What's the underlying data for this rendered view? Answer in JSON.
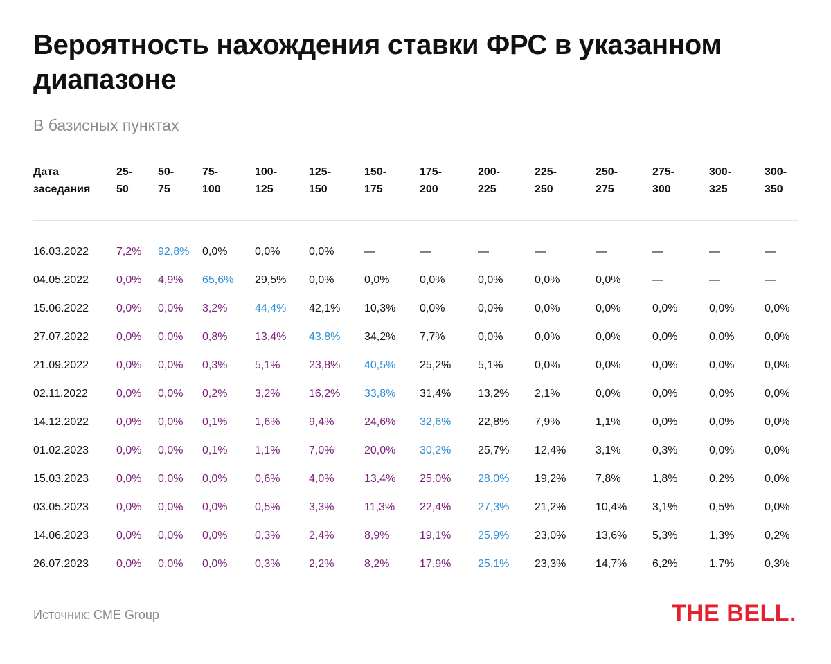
{
  "title": "Вероятность нахождения ставки ФРС в указанном диапазоне",
  "subtitle": "В базисных пунктах",
  "source": "Источник: CME Group",
  "logo": "THE BELL.",
  "colors": {
    "purple": "#7a1f7a",
    "blue": "#2e8fd6",
    "black": "#111111",
    "logo_red": "#e5202e"
  },
  "chart_data": {
    "type": "table",
    "columns": [
      "Дата\nзаседания",
      "25-\n50",
      "50-\n75",
      "75-\n100",
      "100-\n125",
      "125-\n150",
      "150-\n175",
      "175-\n200",
      "200-\n225",
      "225-\n250",
      "250-\n275",
      "275-\n300",
      "300-\n325",
      "300-\n350"
    ],
    "rows": [
      {
        "date": "16.03.2022",
        "values": [
          "7,2%",
          "92,8%",
          "0,0%",
          "0,0%",
          "0,0%",
          "—",
          "—",
          "—",
          "—",
          "—",
          "—",
          "—",
          "—"
        ],
        "highlight": 1,
        "pre": 1
      },
      {
        "date": "04.05.2022",
        "values": [
          "0,0%",
          "4,9%",
          "65,6%",
          "29,5%",
          "0,0%",
          "0,0%",
          "0,0%",
          "0,0%",
          "0,0%",
          "0,0%",
          "—",
          "—",
          "—"
        ],
        "highlight": 2,
        "pre": 2
      },
      {
        "date": "15.06.2022",
        "values": [
          "0,0%",
          "0,0%",
          "3,2%",
          "44,4%",
          "42,1%",
          "10,3%",
          "0,0%",
          "0,0%",
          "0,0%",
          "0,0%",
          "0,0%",
          "0,0%",
          "0,0%"
        ],
        "highlight": 3,
        "pre": 3
      },
      {
        "date": "27.07.2022",
        "values": [
          "0,0%",
          "0,0%",
          "0,8%",
          "13,4%",
          "43,8%",
          "34,2%",
          "7,7%",
          "0,0%",
          "0,0%",
          "0,0%",
          "0,0%",
          "0,0%",
          "0,0%"
        ],
        "highlight": 4,
        "pre": 4
      },
      {
        "date": "21.09.2022",
        "values": [
          "0,0%",
          "0,0%",
          "0,3%",
          "5,1%",
          "23,8%",
          "40,5%",
          "25,2%",
          "5,1%",
          "0,0%",
          "0,0%",
          "0,0%",
          "0,0%",
          "0,0%"
        ],
        "highlight": 5,
        "pre": 5
      },
      {
        "date": "02.11.2022",
        "values": [
          "0,0%",
          "0,0%",
          "0,2%",
          "3,2%",
          "16,2%",
          "33,8%",
          "31,4%",
          "13,2%",
          "2,1%",
          "0,0%",
          "0,0%",
          "0,0%",
          "0,0%"
        ],
        "highlight": 5,
        "pre": 5
      },
      {
        "date": "14.12.2022",
        "values": [
          "0,0%",
          "0,0%",
          "0,1%",
          "1,6%",
          "9,4%",
          "24,6%",
          "32,6%",
          "22,8%",
          "7,9%",
          "1,1%",
          "0,0%",
          "0,0%",
          "0,0%"
        ],
        "highlight": 6,
        "pre": 6
      },
      {
        "date": "01.02.2023",
        "values": [
          "0,0%",
          "0,0%",
          "0,1%",
          "1,1%",
          "7,0%",
          "20,0%",
          "30,2%",
          "25,7%",
          "12,4%",
          "3,1%",
          "0,3%",
          "0,0%",
          "0,0%"
        ],
        "highlight": 6,
        "pre": 6
      },
      {
        "date": "15.03.2023",
        "values": [
          "0,0%",
          "0,0%",
          "0,0%",
          "0,6%",
          "4,0%",
          "13,4%",
          "25,0%",
          "28,0%",
          "19,2%",
          "7,8%",
          "1,8%",
          "0,2%",
          "0,0%"
        ],
        "highlight": 7,
        "pre": 7
      },
      {
        "date": "03.05.2023",
        "values": [
          "0,0%",
          "0,0%",
          "0,0%",
          "0,5%",
          "3,3%",
          "11,3%",
          "22,4%",
          "27,3%",
          "21,2%",
          "10,4%",
          "3,1%",
          "0,5%",
          "0,0%"
        ],
        "highlight": 7,
        "pre": 7
      },
      {
        "date": "14.06.2023",
        "values": [
          "0,0%",
          "0,0%",
          "0,0%",
          "0,3%",
          "2,4%",
          "8,9%",
          "19,1%",
          "25,9%",
          "23,0%",
          "13,6%",
          "5,3%",
          "1,3%",
          "0,2%"
        ],
        "highlight": 7,
        "pre": 7
      },
      {
        "date": "26.07.2023",
        "values": [
          "0,0%",
          "0,0%",
          "0,0%",
          "0,3%",
          "2,2%",
          "8,2%",
          "17,9%",
          "25,1%",
          "23,3%",
          "14,7%",
          "6,2%",
          "1,7%",
          "0,3%"
        ],
        "highlight": 7,
        "pre": 7
      }
    ]
  }
}
